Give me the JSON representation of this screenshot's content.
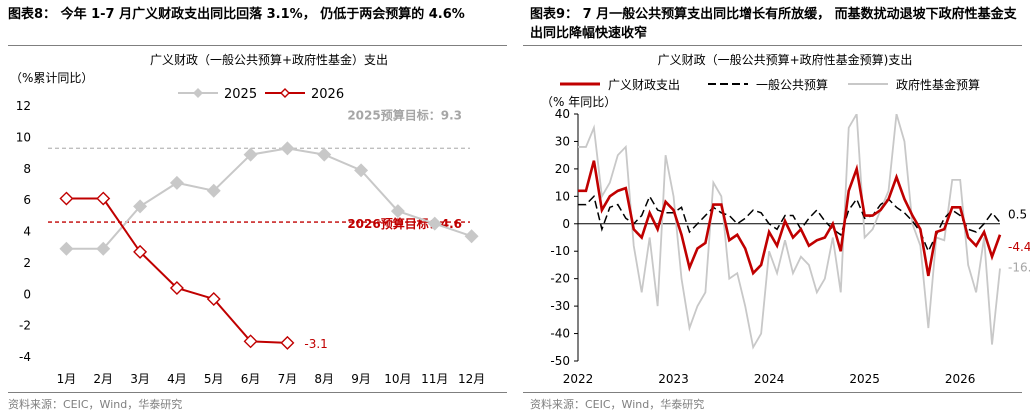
{
  "figure1": {
    "title": "图表8： 今年 1-7 月广义财政支出同比回落 3.1%， 仍低于两会预算的 4.6%",
    "source": "资料来源：CEIC，Wind，华泰研究"
  },
  "figure2": {
    "title": "图表9： 7 月一般公共预算支出同比增长有所放缓， 而基数扰动退坡下政府性基金支出同比降幅快速收窄",
    "source": "资料来源：CEIC，Wind，华泰研究"
  },
  "chart_data": [
    {
      "type": "line",
      "title": "广义财政（一般公共预算+政府性基金）支出",
      "ylabel": "（%累计同比）",
      "categories": [
        "1月",
        "2月",
        "3月",
        "4月",
        "5月",
        "6月",
        "7月",
        "8月",
        "9月",
        "10月",
        "11月",
        "12月"
      ],
      "ylim": [
        -4,
        12
      ],
      "yticks": [
        -4,
        -2,
        0,
        2,
        4,
        6,
        8,
        10,
        12
      ],
      "legend_position": "top",
      "series": [
        {
          "name": "2025",
          "color": "#c8c8c8",
          "values": [
            2.9,
            2.9,
            5.6,
            7.1,
            6.6,
            8.9,
            9.3,
            8.9,
            7.9,
            5.3,
            4.5,
            3.7
          ]
        },
        {
          "name": "2026",
          "color": "#c00000",
          "values": [
            6.1,
            6.1,
            2.7,
            0.4,
            -0.3,
            -3.0,
            -3.1,
            null,
            null,
            null,
            null,
            null
          ]
        }
      ],
      "reference_lines": [
        {
          "label": "2025预算目标：9.3",
          "value": 9.3,
          "color": "#bfbfbf"
        },
        {
          "label": "2026预算目标：4.6",
          "value": 4.6,
          "color": "#c00000"
        }
      ],
      "annotations": [
        {
          "text": "-3.1",
          "color": "#c00000"
        }
      ]
    },
    {
      "type": "line",
      "title": "广义财政（一般公共预算+政府性基金预算)支出",
      "ylabel": "（% 年同比）",
      "x_tick_labels": [
        "2022",
        "2023",
        "2024",
        "2025",
        "2026"
      ],
      "x_start": "2022-01",
      "x_end": "2026-07",
      "ylim": [
        -50,
        40
      ],
      "yticks": [
        -50,
        -40,
        -30,
        -20,
        -10,
        0,
        10,
        20,
        30,
        40
      ],
      "legend_position": "top",
      "series": [
        {
          "name": "广义财政支出",
          "color": "#c00000",
          "values": [
            12,
            12,
            23,
            5,
            10,
            12,
            13,
            -2,
            -5,
            4,
            -2,
            8,
            5,
            -4,
            -16,
            -9,
            -7,
            7,
            7,
            -6,
            -4,
            -9,
            -18,
            -15,
            -3,
            -8,
            1,
            -5,
            -2,
            -8,
            -6,
            -5,
            0,
            -10,
            12,
            20,
            3,
            3,
            5,
            9,
            17,
            9,
            3,
            -2,
            -19,
            -3,
            -2,
            6,
            6,
            -5,
            -8,
            -3,
            -12,
            -4
          ]
        },
        {
          "name": "一般公共预算",
          "color": "#000000",
          "values": [
            7,
            7,
            10,
            -2,
            6,
            7,
            2,
            0,
            3,
            10,
            5,
            4,
            4,
            6,
            -3,
            0,
            3,
            6,
            4,
            3,
            0,
            2,
            5,
            4,
            0,
            -2,
            3,
            3,
            -2,
            2,
            5,
            1,
            -2,
            -4,
            5,
            9,
            2,
            3,
            7,
            9,
            6,
            4,
            1,
            -3,
            -10,
            -4,
            2,
            5,
            3,
            -2,
            -3,
            0,
            4,
            0.5
          ]
        },
        {
          "name": "政府性基金预算",
          "color": "#c8c8c8",
          "values": [
            28,
            28,
            35,
            10,
            15,
            25,
            28,
            -8,
            -25,
            -5,
            -30,
            25,
            10,
            -20,
            -38,
            -30,
            -25,
            15,
            10,
            -20,
            -18,
            -30,
            -45,
            -40,
            -10,
            -18,
            -6,
            -18,
            -12,
            -15,
            -25,
            -20,
            -5,
            -25,
            35,
            50,
            -5,
            -2,
            5,
            12,
            42,
            30,
            0,
            -8,
            -38,
            -5,
            -6,
            16,
            16,
            -15,
            -25,
            -5,
            -44,
            -16.3
          ]
        }
      ],
      "end_labels": [
        {
          "text": "0.5",
          "color": "#000000"
        },
        {
          "text": "-4.4",
          "color": "#c00000"
        },
        {
          "text": "-16.3",
          "color": "#a6a6a6"
        }
      ]
    }
  ]
}
